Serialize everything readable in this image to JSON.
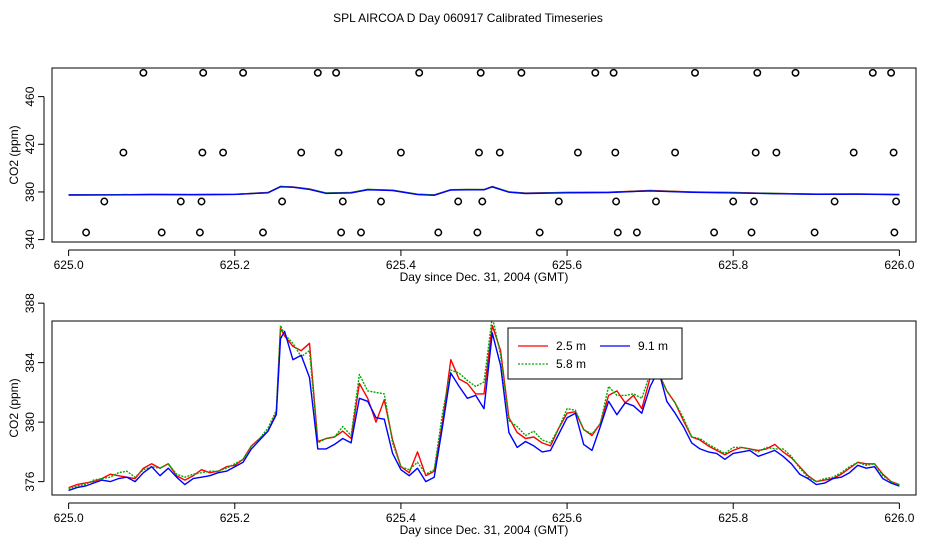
{
  "title": "SPL AIRCOA D  Day 060917  Calibrated Timeseries",
  "chart_data": [
    {
      "type": "scatter",
      "name": "top-panel",
      "xlabel": "Day since Dec. 31, 2004 (GMT)",
      "ylabel": "CO2 (ppm)",
      "xlim": [
        624.98,
        626.02
      ],
      "ylim": [
        338,
        484
      ],
      "xticks": [
        625.0,
        625.2,
        625.4,
        625.6,
        625.8,
        626.0
      ],
      "xtick_labels": [
        "625.0",
        "625.2",
        "625.4",
        "625.6",
        "625.8",
        "626.0"
      ],
      "yticks": [
        340,
        380,
        420,
        460
      ],
      "ytick_labels": [
        "340",
        "380",
        "420",
        "460"
      ],
      "calibration_points": {
        "name": "calibration standards",
        "marker": "open-circle",
        "x": [
          625.021,
          625.043,
          625.066,
          625.09,
          625.112,
          625.135,
          625.158,
          625.16,
          625.161,
          625.162,
          625.186,
          625.21,
          625.234,
          625.257,
          625.28,
          625.3,
          625.322,
          625.325,
          625.328,
          625.33,
          625.352,
          625.376,
          625.4,
          625.422,
          625.445,
          625.469,
          625.492,
          625.494,
          625.496,
          625.498,
          625.519,
          625.545,
          625.567,
          625.59,
          625.613,
          625.634,
          625.656,
          625.658,
          625.659,
          625.661,
          625.684,
          625.707,
          625.73,
          625.754,
          625.777,
          625.8,
          625.822,
          625.825,
          625.827,
          625.829,
          625.852,
          625.875,
          625.898,
          625.922,
          625.945,
          625.968,
          625.99,
          625.993,
          625.994,
          625.996
        ],
        "y": [
          346,
          372,
          413,
          480,
          346,
          372,
          346,
          372,
          413,
          480,
          413,
          480,
          346,
          372,
          413,
          480,
          480,
          413,
          346,
          372,
          346,
          372,
          413,
          480,
          346,
          372,
          346,
          413,
          480,
          372,
          413,
          480,
          346,
          372,
          413,
          480,
          480,
          413,
          372,
          346,
          346,
          372,
          413,
          480,
          346,
          372,
          346,
          372,
          413,
          480,
          413,
          480,
          346,
          372,
          413,
          480,
          480,
          413,
          346,
          372
        ]
      },
      "series": [
        {
          "name": "2.5 m",
          "color": "#ff0000",
          "x": [
            625.0,
            625.05,
            625.1,
            625.15,
            625.2,
            625.24,
            625.255,
            625.27,
            625.29,
            625.31,
            625.34,
            625.36,
            625.39,
            625.42,
            625.44,
            625.46,
            625.48,
            625.5,
            625.51,
            625.53,
            625.55,
            625.6,
            625.65,
            625.7,
            625.75,
            625.8,
            625.85,
            625.9,
            625.95,
            626.0
          ],
          "values": [
            377.5,
            377.6,
            377.9,
            377.8,
            378.0,
            379.5,
            384.5,
            384.2,
            382.5,
            379.0,
            379.5,
            382.0,
            381.5,
            378.0,
            377.5,
            381.8,
            382.0,
            382.0,
            384.6,
            380.0,
            379.0,
            379.6,
            379.8,
            381.2,
            380.0,
            379.5,
            378.8,
            378.2,
            378.3,
            377.9
          ]
        },
        {
          "name": "5.8 m",
          "color": "#00aa00",
          "x": [
            625.0,
            625.05,
            625.1,
            625.15,
            625.2,
            625.24,
            625.255,
            625.27,
            625.29,
            625.31,
            625.34,
            625.36,
            625.39,
            625.42,
            625.44,
            625.46,
            625.48,
            625.5,
            625.51,
            625.53,
            625.55,
            625.6,
            625.65,
            625.7,
            625.75,
            625.8,
            625.85,
            625.9,
            625.95,
            626.0
          ],
          "values": [
            377.5,
            377.6,
            377.9,
            377.8,
            378.0,
            379.4,
            384.7,
            384.0,
            382.3,
            379.1,
            379.4,
            382.2,
            381.4,
            378.1,
            377.4,
            381.9,
            382.1,
            382.0,
            384.4,
            380.1,
            378.9,
            379.5,
            379.7,
            381.0,
            379.9,
            379.4,
            378.7,
            378.1,
            378.2,
            377.8
          ]
        },
        {
          "name": "9.1 m",
          "color": "#0000ff",
          "x": [
            625.0,
            625.05,
            625.1,
            625.15,
            625.2,
            625.24,
            625.255,
            625.27,
            625.29,
            625.31,
            625.34,
            625.36,
            625.39,
            625.42,
            625.44,
            625.46,
            625.48,
            625.5,
            625.51,
            625.53,
            625.55,
            625.6,
            625.65,
            625.7,
            625.75,
            625.8,
            625.85,
            625.9,
            625.95,
            626.0
          ],
          "values": [
            377.4,
            377.5,
            377.8,
            377.7,
            377.9,
            379.3,
            384.3,
            384.0,
            382.1,
            378.8,
            379.2,
            381.8,
            381.2,
            377.8,
            377.2,
            381.6,
            381.8,
            381.8,
            384.2,
            379.8,
            378.7,
            379.3,
            379.5,
            380.9,
            379.7,
            379.2,
            378.5,
            378.0,
            378.1,
            377.7
          ]
        }
      ]
    },
    {
      "type": "line",
      "name": "bottom-panel",
      "xlabel": "Day since Dec. 31, 2004 (GMT)",
      "ylabel": "CO2 (ppm)",
      "xlim": [
        624.98,
        626.02
      ],
      "ylim": [
        375.1,
        386.8
      ],
      "xticks": [
        625.0,
        625.2,
        625.4,
        625.6,
        625.8,
        626.0
      ],
      "xtick_labels": [
        "625.0",
        "625.2",
        "625.4",
        "625.6",
        "625.8",
        "626.0"
      ],
      "yticks": [
        376,
        380,
        384,
        388
      ],
      "ytick_labels": [
        "376",
        "380",
        "384",
        "388"
      ],
      "legend": {
        "position": "top-center",
        "entries": [
          "2.5 m",
          "9.1 m",
          "5.8 m"
        ]
      },
      "x": [
        625.0,
        625.01,
        625.02,
        625.03,
        625.04,
        625.05,
        625.06,
        625.07,
        625.08,
        625.09,
        625.1,
        625.11,
        625.12,
        625.13,
        625.14,
        625.15,
        625.16,
        625.17,
        625.18,
        625.19,
        625.2,
        625.21,
        625.22,
        625.23,
        625.24,
        625.25,
        625.255,
        625.26,
        625.27,
        625.28,
        625.29,
        625.3,
        625.31,
        625.32,
        625.33,
        625.34,
        625.35,
        625.36,
        625.37,
        625.38,
        625.39,
        625.4,
        625.41,
        625.42,
        625.43,
        625.44,
        625.45,
        625.46,
        625.47,
        625.48,
        625.49,
        625.5,
        625.51,
        625.52,
        625.53,
        625.54,
        625.55,
        625.56,
        625.57,
        625.58,
        625.59,
        625.6,
        625.61,
        625.62,
        625.63,
        625.64,
        625.65,
        625.66,
        625.67,
        625.68,
        625.69,
        625.7,
        625.71,
        625.72,
        625.73,
        625.74,
        625.75,
        625.76,
        625.77,
        625.78,
        625.79,
        625.8,
        625.81,
        625.82,
        625.83,
        625.84,
        625.85,
        625.86,
        625.87,
        625.88,
        625.89,
        625.9,
        625.91,
        625.92,
        625.93,
        625.94,
        625.95,
        625.96,
        625.97,
        625.98,
        625.99,
        626.0
      ],
      "series": [
        {
          "name": "2.5 m",
          "color": "#ff0000",
          "values": [
            375.6,
            375.8,
            375.9,
            376.0,
            376.2,
            376.5,
            376.4,
            376.3,
            376.2,
            376.9,
            377.2,
            376.9,
            377.2,
            376.4,
            376.1,
            376.4,
            376.8,
            376.6,
            376.7,
            377.0,
            377.1,
            377.5,
            378.4,
            378.9,
            379.4,
            380.6,
            386.3,
            385.8,
            385.1,
            384.8,
            385.3,
            378.7,
            378.9,
            379.0,
            379.4,
            378.9,
            382.6,
            381.6,
            380.0,
            381.5,
            378.8,
            377.0,
            376.6,
            378.0,
            376.4,
            376.7,
            380.0,
            384.2,
            382.9,
            382.6,
            381.9,
            381.9,
            386.5,
            384.8,
            380.3,
            379.3,
            378.9,
            379.0,
            378.6,
            378.4,
            379.6,
            380.6,
            380.7,
            379.5,
            379.1,
            379.9,
            381.8,
            382.1,
            381.3,
            381.8,
            380.9,
            383.0,
            383.3,
            382.1,
            381.3,
            380.1,
            379.0,
            378.8,
            378.4,
            378.1,
            377.8,
            378.1,
            378.3,
            378.2,
            378.1,
            378.2,
            378.5,
            378.0,
            377.6,
            377.0,
            376.4,
            376.0,
            376.1,
            376.2,
            376.5,
            376.9,
            377.3,
            377.2,
            377.2,
            376.5,
            376.0,
            375.8
          ]
        },
        {
          "name": "5.8 m",
          "color": "#00aa00",
          "values": [
            375.5,
            375.7,
            375.8,
            376.1,
            376.2,
            376.3,
            376.6,
            376.7,
            376.3,
            376.8,
            377.0,
            376.9,
            377.2,
            376.5,
            376.3,
            376.5,
            376.6,
            376.7,
            376.7,
            376.9,
            377.2,
            377.5,
            378.4,
            378.9,
            379.6,
            380.8,
            386.5,
            385.9,
            385.3,
            384.4,
            384.8,
            378.6,
            378.9,
            379.0,
            379.7,
            379.1,
            383.2,
            382.1,
            382.0,
            381.9,
            378.6,
            377.0,
            376.8,
            377.3,
            376.5,
            376.8,
            380.6,
            383.5,
            383.3,
            382.8,
            382.4,
            382.7,
            387.1,
            384.5,
            380.1,
            379.7,
            379.1,
            379.4,
            378.8,
            378.6,
            379.6,
            380.9,
            380.8,
            379.5,
            379.2,
            379.9,
            382.4,
            381.8,
            381.8,
            381.9,
            381.6,
            383.3,
            383.3,
            382.1,
            381.3,
            380.3,
            379.0,
            378.9,
            378.5,
            378.2,
            377.9,
            378.3,
            378.3,
            378.2,
            378.0,
            378.3,
            378.2,
            378.2,
            377.7,
            376.9,
            376.3,
            376.0,
            376.2,
            376.3,
            376.6,
            377.0,
            377.3,
            377.1,
            377.2,
            376.4,
            376.0,
            375.8
          ]
        },
        {
          "name": "9.1 m",
          "color": "#0000ff",
          "values": [
            375.4,
            375.6,
            375.7,
            375.9,
            376.1,
            376.0,
            376.2,
            376.3,
            376.0,
            376.6,
            377.0,
            376.4,
            376.9,
            376.3,
            375.8,
            376.2,
            376.3,
            376.4,
            376.6,
            376.7,
            377.0,
            377.3,
            378.2,
            378.8,
            379.4,
            380.5,
            385.6,
            386.1,
            384.2,
            384.5,
            383.0,
            378.2,
            378.2,
            378.5,
            378.9,
            378.6,
            381.6,
            381.4,
            380.3,
            380.2,
            377.9,
            376.8,
            376.4,
            376.9,
            376.0,
            376.3,
            379.7,
            383.3,
            382.4,
            381.6,
            381.8,
            380.9,
            386.0,
            383.8,
            379.3,
            378.3,
            378.7,
            378.4,
            378.0,
            378.1,
            379.2,
            380.3,
            380.6,
            378.5,
            378.1,
            379.7,
            381.4,
            380.5,
            381.3,
            381.1,
            380.6,
            382.4,
            383.5,
            381.4,
            380.6,
            379.7,
            378.6,
            378.2,
            378.0,
            377.9,
            377.5,
            377.9,
            378.0,
            378.1,
            377.7,
            377.9,
            378.1,
            377.7,
            377.2,
            376.5,
            376.2,
            375.8,
            375.9,
            376.2,
            376.3,
            376.6,
            377.1,
            376.9,
            377.0,
            376.2,
            375.9,
            375.7
          ]
        }
      ]
    }
  ]
}
